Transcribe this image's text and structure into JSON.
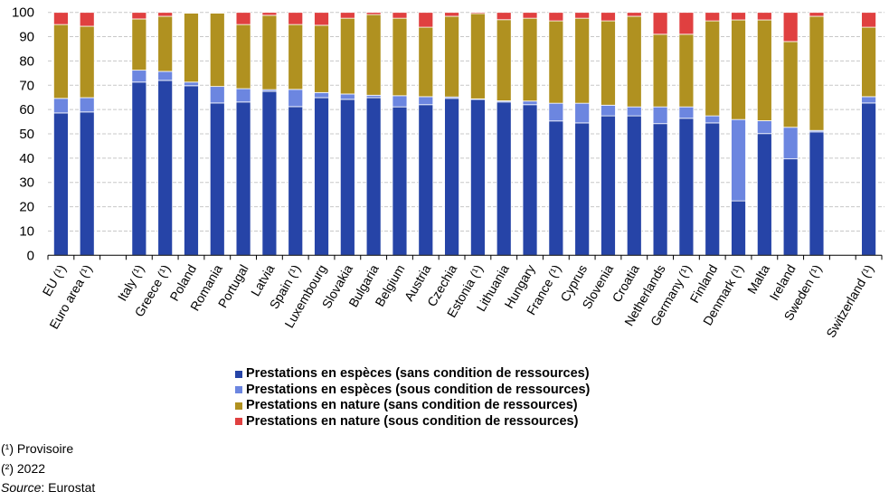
{
  "chart_data": {
    "type": "bar",
    "stacked": true,
    "title": "",
    "xlabel": "",
    "ylabel": "",
    "ylim": [
      0,
      100
    ],
    "yticks": [
      0,
      10,
      20,
      30,
      40,
      50,
      60,
      70,
      80,
      90,
      100
    ],
    "grid": "horizontal dashed",
    "legend_position": "bottom-center",
    "categories": [
      "EU (¹)",
      "Euro area (¹)",
      "",
      "Italy (¹)",
      "Greece (¹)",
      "Poland",
      "Romania",
      "Portugal",
      "Latvia",
      "Spain (¹)",
      "Luxembourg",
      "Slovakia",
      "Bulgaria",
      "Belgium",
      "Austria",
      "Czechia",
      "Estonia (¹)",
      "Lithuania",
      "Hungary",
      "France (¹)",
      "Cyprus",
      "Slovenia",
      "Croatia",
      "Netherlands",
      "Germany (¹)",
      "Finland",
      "Denmark (¹)",
      "Malta",
      "Ireland",
      "Sweden (¹)",
      "",
      "Switzerland (¹)"
    ],
    "series": [
      {
        "name": "Prestations en espèces (sans condition de ressources)",
        "color": "#2644A7",
        "values": [
          58.6,
          59.0,
          null,
          71.3,
          72.0,
          69.8,
          62.7,
          63.1,
          67.5,
          61.2,
          64.9,
          64.2,
          64.9,
          61.1,
          62.0,
          64.6,
          64.2,
          63.1,
          62.0,
          55.3,
          54.5,
          57.4,
          57.4,
          54.2,
          56.4,
          54.5,
          22.4,
          50.1,
          39.7,
          50.8,
          null,
          62.7
        ]
      },
      {
        "name": "Prestations en espèces (sous condition de ressources)",
        "color": "#6C86E0",
        "values": [
          6.0,
          5.9,
          null,
          4.9,
          3.7,
          1.5,
          6.8,
          5.5,
          0.7,
          7.1,
          2.1,
          2.2,
          1.0,
          4.6,
          3.3,
          0.6,
          0.2,
          0.5,
          1.5,
          7.3,
          8.1,
          4.4,
          3.7,
          6.9,
          4.7,
          2.9,
          33.5,
          5.3,
          13.0,
          0.6,
          null,
          2.6
        ]
      },
      {
        "name": "Prestations en nature (sans condition de ressources)",
        "color": "#B09120",
        "values": [
          30.4,
          29.4,
          null,
          21.1,
          22.7,
          28.4,
          30.2,
          26.4,
          30.6,
          26.7,
          27.7,
          31.2,
          33.2,
          31.9,
          28.6,
          33.2,
          35.1,
          33.4,
          34.1,
          33.9,
          35.0,
          34.7,
          37.3,
          29.9,
          29.9,
          39.1,
          41.0,
          41.5,
          35.3,
          47.0,
          null,
          28.6
        ]
      },
      {
        "name": "Prestations en nature (sous condition de ressources)",
        "color": "#E04040",
        "values": [
          5.0,
          5.7,
          null,
          2.7,
          1.6,
          0.3,
          0.3,
          5.0,
          1.2,
          5.0,
          5.3,
          2.4,
          0.9,
          2.4,
          6.1,
          1.6,
          0.5,
          3.0,
          2.4,
          3.5,
          2.4,
          3.5,
          1.6,
          9.0,
          9.0,
          3.5,
          3.1,
          3.1,
          12.0,
          1.6,
          null,
          6.1
        ]
      }
    ]
  },
  "legend": {
    "items": [
      {
        "label": "Prestations en espèces (sans condition de ressources)",
        "color": "#2644A7"
      },
      {
        "label": "Prestations en espèces (sous condition de ressources)",
        "color": "#6C86E0"
      },
      {
        "label": "Prestations en nature (sans condition de ressources)",
        "color": "#B09120"
      },
      {
        "label": "Prestations en nature (sous condition de ressources)",
        "color": "#E04040"
      }
    ]
  },
  "footnotes": {
    "note1": "(¹) Provisoire",
    "note2": "(²) 2022",
    "source_label": "Source",
    "source_value": ": Eurostat"
  }
}
